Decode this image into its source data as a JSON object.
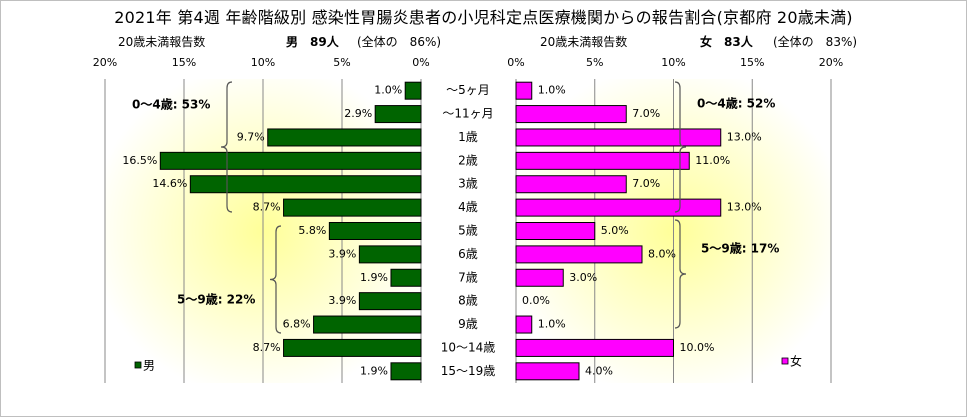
{
  "title": "2021年 第4週 年齢階級別 感染性胃腸炎患者の小児科定点医療機関からの報告割合(京都府 20歳未満)",
  "left_panel": {
    "axis_caption": "20歳未満報告数",
    "sex_count": "男　89人",
    "total_share": "(全体の　86%)",
    "legend_label": "男",
    "bracket_labels": [
      "0～4歳: 53%",
      "5～9歳: 22%"
    ]
  },
  "right_panel": {
    "axis_caption": "20歳未満報告数",
    "sex_count": "女　83人",
    "total_share": "(全体の　83%)",
    "legend_label": "女",
    "bracket_labels": [
      "0～4歳: 52%",
      "5～9歳: 17%"
    ]
  },
  "colors": {
    "male": "#006400",
    "female": "#ff00ff",
    "plot_glow": "#ffff99"
  },
  "chart_data": [
    {
      "type": "bar",
      "orientation": "horizontal",
      "direction": "reversed",
      "categories": [
        "～5ヶ月",
        "～11ヶ月",
        "1歳",
        "2歳",
        "3歳",
        "4歳",
        "5歳",
        "6歳",
        "7歳",
        "8歳",
        "9歳",
        "10～14歳",
        "15～19歳"
      ],
      "series": [
        {
          "name": "男",
          "values": [
            1.0,
            2.9,
            9.7,
            16.5,
            14.6,
            8.7,
            5.8,
            3.9,
            1.9,
            3.9,
            6.8,
            8.7,
            1.9
          ]
        }
      ],
      "value_labels": [
        "1.0%",
        "2.9%",
        "9.7%",
        "16.5%",
        "14.6%",
        "8.7%",
        "5.8%",
        "3.9%",
        "1.9%",
        "3.9%",
        "6.8%",
        "8.7%",
        "1.9%"
      ],
      "xlim": [
        0,
        20
      ],
      "x_ticks": [
        "0%",
        "5%",
        "10%",
        "15%",
        "20%"
      ],
      "grid": true,
      "legend_position": "bottom-left"
    },
    {
      "type": "bar",
      "orientation": "horizontal",
      "direction": "normal",
      "categories": [
        "～5ヶ月",
        "～11ヶ月",
        "1歳",
        "2歳",
        "3歳",
        "4歳",
        "5歳",
        "6歳",
        "7歳",
        "8歳",
        "9歳",
        "10～14歳",
        "15～19歳"
      ],
      "series": [
        {
          "name": "女",
          "values": [
            1.0,
            7.0,
            13.0,
            11.0,
            7.0,
            13.0,
            5.0,
            8.0,
            3.0,
            0.0,
            1.0,
            10.0,
            4.0
          ]
        }
      ],
      "value_labels": [
        "1.0%",
        "7.0%",
        "13.0%",
        "11.0%",
        "7.0%",
        "13.0%",
        "5.0%",
        "8.0%",
        "3.0%",
        "0.0%",
        "1.0%",
        "10.0%",
        "4.0%"
      ],
      "xlim": [
        0,
        20
      ],
      "x_ticks": [
        "0%",
        "5%",
        "10%",
        "15%",
        "20%"
      ],
      "grid": true,
      "legend_position": "bottom-right"
    }
  ]
}
